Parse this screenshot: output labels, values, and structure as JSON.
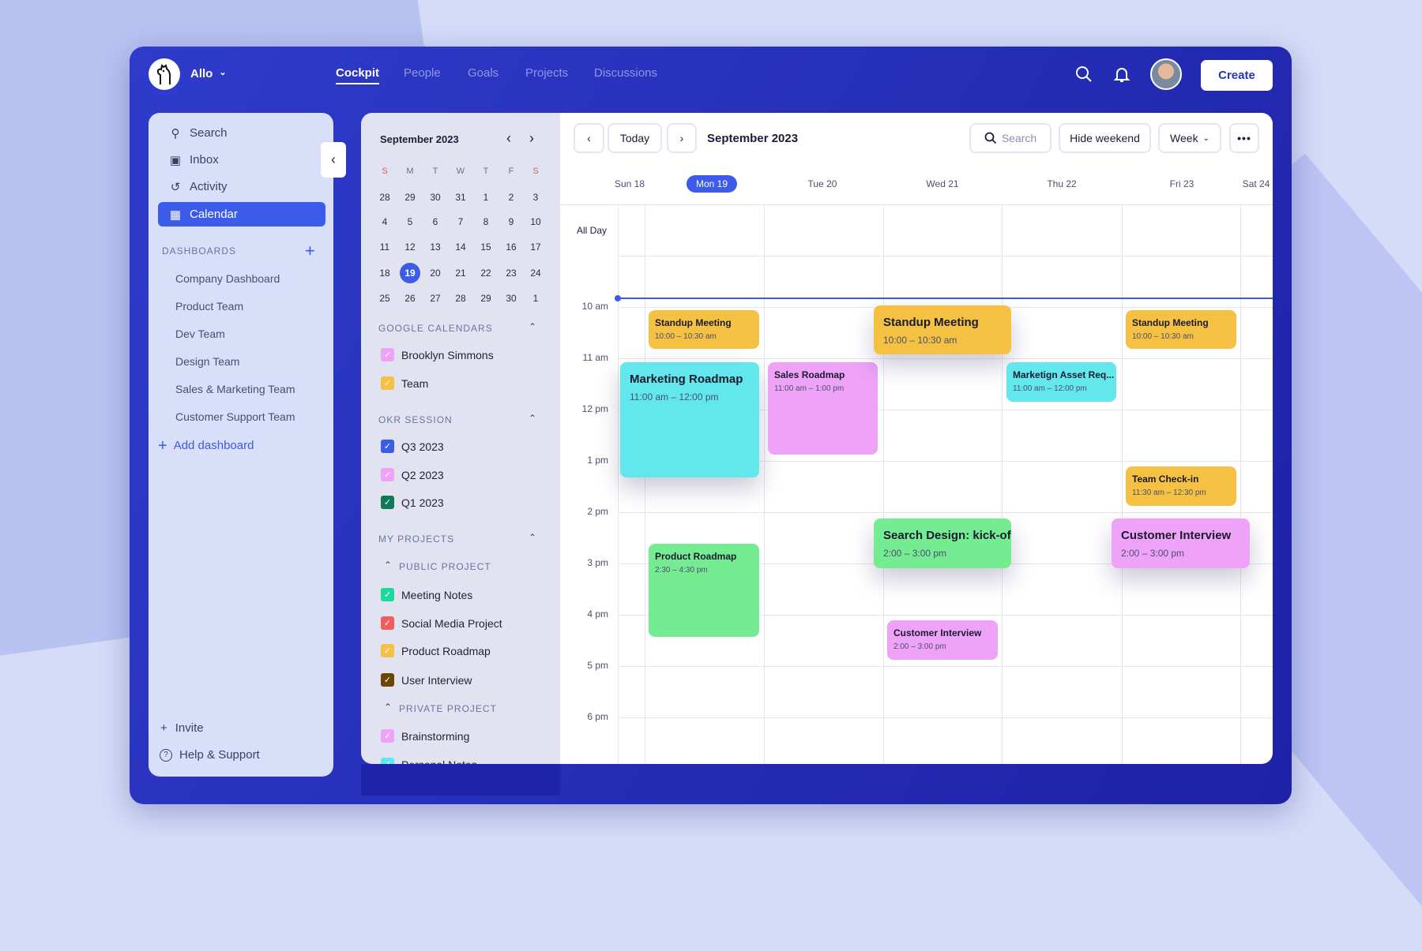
{
  "colors": {
    "brand": "#2b35c4",
    "accent": "#3b5be8",
    "yellow": "#f4c142",
    "cyan": "#62e8ec",
    "pink": "#eea3f8",
    "green": "#76ec92"
  },
  "header": {
    "workspace": "Allo",
    "nav": [
      "Cockpit",
      "People",
      "Goals",
      "Projects",
      "Discussions"
    ],
    "active_nav": "Cockpit",
    "create": "Create"
  },
  "sidebar": {
    "items": [
      "Search",
      "Inbox",
      "Activity",
      "Calendar"
    ],
    "active": "Calendar",
    "dashboards_title": "DASHBOARDS",
    "dashboards": [
      "Company Dashboard",
      "Product Team",
      "Dev Team",
      "Design Team",
      "Sales & Marketing Team",
      "Customer Support Team"
    ],
    "add_dashboard": "Add dashboard",
    "invite": "Invite",
    "help": "Help & Support"
  },
  "mini_calendar": {
    "title": "September 2023",
    "weekdays": [
      "S",
      "M",
      "T",
      "W",
      "T",
      "F",
      "S"
    ],
    "weeks": [
      [
        "28",
        "29",
        "30",
        "31",
        "1",
        "2",
        "3"
      ],
      [
        "4",
        "5",
        "6",
        "7",
        "8",
        "9",
        "10"
      ],
      [
        "11",
        "12",
        "13",
        "14",
        "15",
        "16",
        "17"
      ],
      [
        "18",
        "19",
        "20",
        "21",
        "22",
        "23",
        "24"
      ],
      [
        "25",
        "26",
        "27",
        "28",
        "29",
        "30",
        "1"
      ]
    ],
    "selected": "19"
  },
  "filters": {
    "google": {
      "title": "GOOGLE CALENDARS",
      "items": [
        {
          "label": "Brooklyn Simmons",
          "color": "#eea3f8"
        },
        {
          "label": "Team",
          "color": "#f4c142"
        }
      ]
    },
    "okr": {
      "title": "OKR SESSION",
      "items": [
        {
          "label": "Q3 2023",
          "color": "#3b5be8"
        },
        {
          "label": "Q2 2023",
          "color": "#eea3f8"
        },
        {
          "label": "Q1 2023",
          "color": "#0f7a55"
        }
      ]
    },
    "projects": {
      "title": "MY PROJECTS",
      "public": "PUBLIC PROJECT",
      "public_items": [
        {
          "label": "Meeting Notes",
          "color": "#1ed89a"
        },
        {
          "label": "Social Media Project",
          "color": "#f25c5c"
        },
        {
          "label": "Product Roadmap",
          "color": "#f4c142"
        },
        {
          "label": "User Interview",
          "color": "#6b4506"
        }
      ],
      "private": "PRIVATE PROJECT",
      "private_items": [
        {
          "label": "Brainstorming",
          "color": "#eea3f8"
        },
        {
          "label": "Personal Notes",
          "color": "#62e8ec"
        }
      ]
    }
  },
  "calendar": {
    "title": "September 2023",
    "today": "Today",
    "search_placeholder": "Search",
    "hide_weekend": "Hide weekend",
    "view": "Week",
    "all_day": "All Day",
    "days": [
      "Sun 18",
      "Mon 19",
      "Tue 20",
      "Wed 21",
      "Thu 22",
      "Fri 23",
      "Sat 24"
    ],
    "today_day": "Mon 19",
    "hours": [
      "10 am",
      "11 am",
      "12 pm",
      "1 pm",
      "2 pm",
      "3 pm",
      "4 pm",
      "5 pm",
      "6 pm"
    ],
    "events": [
      {
        "title": "Standup Meeting",
        "time": "10:00 – 10:30 am",
        "day": "Mon 19",
        "color": "#f4c142"
      },
      {
        "title": "Marketing Roadmap",
        "time": "11:00 am – 12:00 pm",
        "day": "Mon 19",
        "color": "#62e8ec"
      },
      {
        "title": "Product Roadmap",
        "time": "2:30 – 4:30 pm",
        "day": "Mon 19",
        "color": "#76ec92"
      },
      {
        "title": "Sales Roadmap",
        "time": "11:00 am – 1:00 pm",
        "day": "Tue 20",
        "color": "#eea3f8"
      },
      {
        "title": "Standup Meeting",
        "time": "10:00 – 10:30 am",
        "day": "Wed 21",
        "color": "#f4c142"
      },
      {
        "title": "Search Design: kick-off",
        "time": "2:00 – 3:00 pm",
        "day": "Wed 21",
        "color": "#76ec92"
      },
      {
        "title": "Customer Interview",
        "time": "2:00 – 3:00 pm",
        "day": "Wed 21",
        "color": "#eea3f8"
      },
      {
        "title": "Marketign Asset Req...",
        "time": "11:00 am – 12:00 pm",
        "day": "Thu 22",
        "color": "#62e8ec"
      },
      {
        "title": "Standup Meeting",
        "time": "10:00 – 10:30 am",
        "day": "Fri 23",
        "color": "#f4c142"
      },
      {
        "title": "Team Check-in",
        "time": "11:30 am – 12:30 pm",
        "day": "Fri 23",
        "color": "#f4c142"
      },
      {
        "title": "Customer Interview",
        "time": "2:00 – 3:00 pm",
        "day": "Fri 23",
        "color": "#eea3f8"
      }
    ]
  }
}
